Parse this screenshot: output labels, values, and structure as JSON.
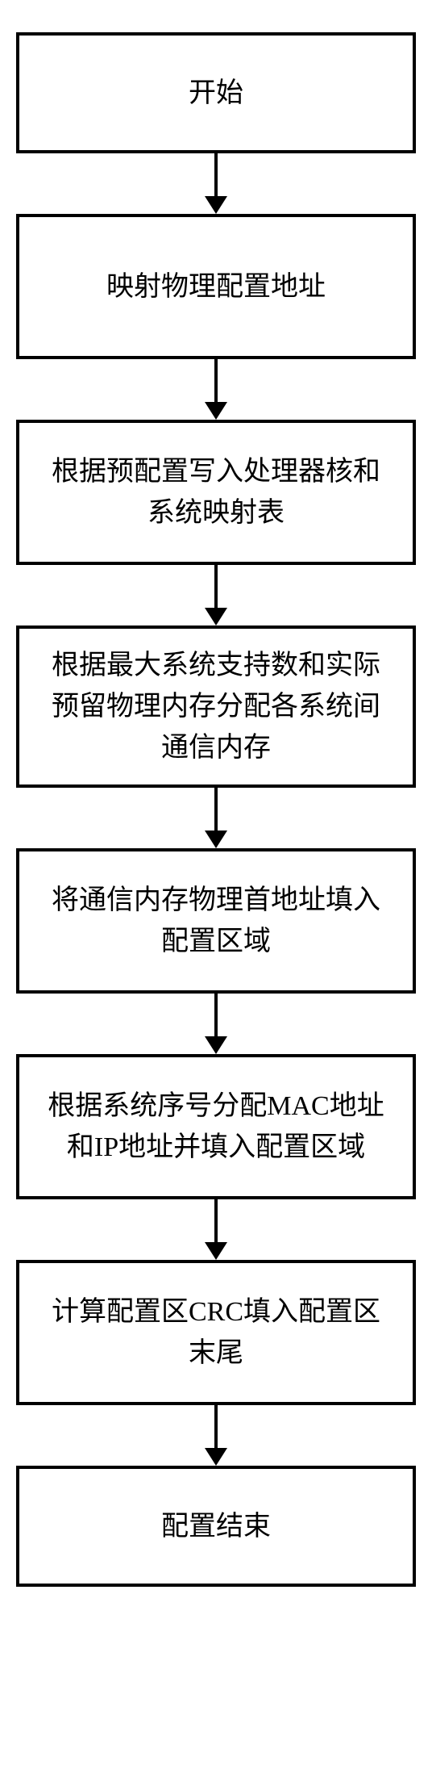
{
  "flowchart": {
    "type": "flowchart",
    "direction": "vertical",
    "background_color": "#ffffff",
    "node_border_color": "#000000",
    "node_border_width": 4,
    "node_fill_color": "#ffffff",
    "text_color": "#000000",
    "font_size": 34,
    "font_family": "SimSun",
    "arrow_color": "#000000",
    "arrow_line_width": 4,
    "arrow_head_width": 28,
    "arrow_head_height": 22,
    "arrow_gap_height": 75,
    "nodes": [
      {
        "id": "start",
        "type": "terminal",
        "label": "开始"
      },
      {
        "id": "step1",
        "type": "process",
        "label": "映射物理配置地址"
      },
      {
        "id": "step2",
        "type": "process",
        "label": "根据预配置写入处理器核和系统映射表"
      },
      {
        "id": "step3",
        "type": "process",
        "label": "根据最大系统支持数和实际预留物理内存分配各系统间通信内存"
      },
      {
        "id": "step4",
        "type": "process",
        "label": "将通信内存物理首地址填入配置区域"
      },
      {
        "id": "step5",
        "type": "process",
        "label": "根据系统序号分配MAC地址和IP地址并填入配置区域"
      },
      {
        "id": "step6",
        "type": "process",
        "label": "计算配置区CRC填入配置区末尾"
      },
      {
        "id": "end",
        "type": "terminal",
        "label": "配置结束"
      }
    ],
    "edges": [
      {
        "from": "start",
        "to": "step1"
      },
      {
        "from": "step1",
        "to": "step2"
      },
      {
        "from": "step2",
        "to": "step3"
      },
      {
        "from": "step3",
        "to": "step4"
      },
      {
        "from": "step4",
        "to": "step5"
      },
      {
        "from": "step5",
        "to": "step6"
      },
      {
        "from": "step6",
        "to": "end"
      }
    ]
  }
}
